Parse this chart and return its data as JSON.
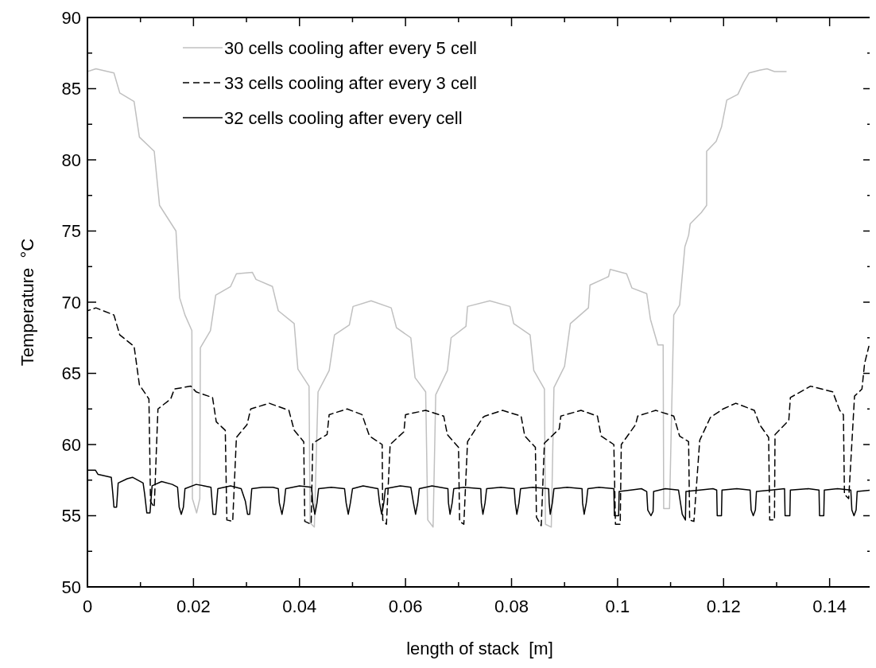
{
  "chart_data": {
    "type": "line",
    "xlabel": "length of stack  [m]",
    "ylabel": "Temperature  °C",
    "xlim": [
      0,
      0.148
    ],
    "ylim": [
      50,
      90
    ],
    "xticks": [
      0,
      {
        "value": 0.01,
        "label": null
      },
      0.02,
      {
        "value": 0.03,
        "label": null
      },
      0.04,
      {
        "value": 0.05,
        "label": null
      },
      0.06,
      {
        "value": 0.07,
        "label": null
      },
      0.08,
      {
        "value": 0.09,
        "label": null
      },
      0.1,
      {
        "value": 0.11,
        "label": null
      },
      0.12,
      {
        "value": 0.13,
        "label": null
      },
      0.14
    ],
    "yticks": [
      50,
      {
        "value": 52.5,
        "label": null
      },
      55,
      {
        "value": 57.5,
        "label": null
      },
      60,
      {
        "value": 62.5,
        "label": null
      },
      65,
      {
        "value": 67.5,
        "label": null
      },
      70,
      {
        "value": 72.5,
        "label": null
      },
      75,
      {
        "value": 77.5,
        "label": null
      },
      80,
      {
        "value": 82.5,
        "label": null
      },
      85,
      {
        "value": 87.5,
        "label": null
      },
      90
    ],
    "grid": false,
    "legend": "top left",
    "marker": "none",
    "series": [
      {
        "name": "30 cells cooling after every 5 cell",
        "color": "#c0c0c0",
        "line_style": "solid",
        "x": [
          0,
          0.0016,
          0.005,
          0.0061,
          0.0088,
          0.0098,
          0.0126,
          0.0136,
          0.0167,
          0.0174,
          0.0184,
          0.0197,
          0.0198,
          0.0206,
          0.0212,
          0.0213,
          0.0232,
          0.0242,
          0.027,
          0.0281,
          0.0311,
          0.0318,
          0.0349,
          0.036,
          0.039,
          0.0397,
          0.0418,
          0.042,
          0.0428,
          0.0435,
          0.0456,
          0.0466,
          0.0494,
          0.0501,
          0.0535,
          0.0573,
          0.0583,
          0.061,
          0.0618,
          0.0638,
          0.0642,
          0.0652,
          0.0657,
          0.0679,
          0.0686,
          0.0714,
          0.0717,
          0.0759,
          0.0797,
          0.0804,
          0.0835,
          0.0842,
          0.0862,
          0.0864,
          0.0875,
          0.088,
          0.09,
          0.0911,
          0.0945,
          0.0948,
          0.0983,
          0.0986,
          0.1017,
          0.1027,
          0.1055,
          0.1062,
          0.1076,
          0.1086,
          0.1087,
          0.1098,
          0.1106,
          0.1117,
          0.1127,
          0.1134,
          0.1137,
          0.1158,
          0.1168,
          0.1168,
          0.1186,
          0.1196,
          0.1206,
          0.1227,
          0.1237,
          0.1248,
          0.1268,
          0.1282,
          0.1296,
          0.1318
        ],
        "values": [
          86.2,
          86.4,
          86.1,
          84.7,
          84.1,
          81.6,
          80.6,
          76.8,
          75.0,
          70.3,
          69.1,
          68.0,
          56.2,
          55.2,
          56.2,
          66.8,
          68.0,
          70.5,
          71.1,
          72.0,
          72.1,
          71.6,
          71.1,
          69.4,
          68.5,
          65.3,
          64.1,
          54.5,
          54.2,
          63.7,
          65.2,
          67.7,
          68.4,
          69.7,
          70.1,
          69.6,
          68.2,
          67.5,
          64.7,
          63.7,
          54.7,
          54.2,
          63.5,
          65.2,
          67.5,
          68.3,
          69.7,
          70.1,
          69.7,
          68.5,
          67.7,
          65.2,
          63.9,
          54.4,
          54.2,
          64.0,
          65.5,
          68.5,
          69.6,
          71.2,
          71.8,
          72.3,
          72.0,
          71.0,
          70.6,
          68.8,
          67.0,
          67.0,
          55.5,
          55.5,
          69.1,
          69.8,
          73.9,
          74.7,
          75.5,
          76.3,
          76.8,
          80.6,
          81.3,
          82.3,
          84.2,
          84.6,
          85.4,
          86.1,
          86.3,
          86.4,
          86.2,
          86.2
        ]
      },
      {
        "name": "33 cells cooling after every 3 cell",
        "color": "#000000",
        "line_style": "dashed",
        "x": [
          0,
          0.0016,
          0.005,
          0.0061,
          0.0088,
          0.0098,
          0.0116,
          0.0119,
          0.0126,
          0.0133,
          0.0157,
          0.0164,
          0.0195,
          0.0205,
          0.0236,
          0.0243,
          0.026,
          0.0263,
          0.0274,
          0.0281,
          0.0301,
          0.0308,
          0.0343,
          0.038,
          0.039,
          0.0408,
          0.041,
          0.0422,
          0.0425,
          0.0452,
          0.0456,
          0.049,
          0.0518,
          0.0532,
          0.0556,
          0.0557,
          0.0564,
          0.0571,
          0.0597,
          0.06,
          0.0638,
          0.0672,
          0.0679,
          0.07,
          0.0702,
          0.071,
          0.0717,
          0.0746,
          0.075,
          0.0783,
          0.0818,
          0.0825,
          0.0845,
          0.0847,
          0.0856,
          0.0862,
          0.089,
          0.0893,
          0.0931,
          0.0962,
          0.0969,
          0.0993,
          0.0996,
          0.1005,
          0.1007,
          0.1034,
          0.1038,
          0.1072,
          0.1106,
          0.1117,
          0.1134,
          0.1136,
          0.1144,
          0.1155,
          0.1175,
          0.1199,
          0.1223,
          0.1258,
          0.1268,
          0.1285,
          0.1287,
          0.1296,
          0.1297,
          0.1323,
          0.1326,
          0.1364,
          0.1406,
          0.1419,
          0.1426,
          0.1428,
          0.1436,
          0.1447,
          0.1461,
          0.1466,
          0.1474
        ],
        "values": [
          69.4,
          69.6,
          69.1,
          67.7,
          66.9,
          64.2,
          63.2,
          56.0,
          55.6,
          62.5,
          63.2,
          63.9,
          64.1,
          63.7,
          63.3,
          61.6,
          61.0,
          54.7,
          54.6,
          60.5,
          61.4,
          62.5,
          62.9,
          62.4,
          61.0,
          60.2,
          54.6,
          54.4,
          60.1,
          60.7,
          62.1,
          62.5,
          62.1,
          60.6,
          60.0,
          54.7,
          54.4,
          60.0,
          60.9,
          62.1,
          62.4,
          62.0,
          60.7,
          59.8,
          54.6,
          54.4,
          60.2,
          61.9,
          62.0,
          62.4,
          62.0,
          60.6,
          59.8,
          54.9,
          54.3,
          60.1,
          61.1,
          62.0,
          62.4,
          62.0,
          60.6,
          60.0,
          54.4,
          54.4,
          60.0,
          61.4,
          62.0,
          62.4,
          62.0,
          60.6,
          60.2,
          54.7,
          54.6,
          60.3,
          61.9,
          62.5,
          62.9,
          62.4,
          61.4,
          60.5,
          54.7,
          54.7,
          60.7,
          61.7,
          63.3,
          64.1,
          63.7,
          62.4,
          62.1,
          56.5,
          56.2,
          63.4,
          63.9,
          65.7,
          66.9
        ]
      },
      {
        "name": "32 cells cooling after every cell",
        "color": "#000000",
        "line_style": "solid",
        "x": [
          0,
          0.0015,
          0.002,
          0.0045,
          0.0048,
          0.005,
          0.0055,
          0.0058,
          0.0075,
          0.0085,
          0.0105,
          0.0108,
          0.0112,
          0.0118,
          0.0122,
          0.014,
          0.016,
          0.017,
          0.0173,
          0.0177,
          0.0181,
          0.0184,
          0.0205,
          0.022,
          0.0233,
          0.0237,
          0.0242,
          0.0246,
          0.027,
          0.029,
          0.0298,
          0.0302,
          0.0306,
          0.031,
          0.033,
          0.035,
          0.036,
          0.0362,
          0.0367,
          0.0371,
          0.0374,
          0.04,
          0.0423,
          0.0425,
          0.0429,
          0.0433,
          0.0436,
          0.046,
          0.0485,
          0.0488,
          0.0492,
          0.0496,
          0.05,
          0.052,
          0.0548,
          0.0551,
          0.0555,
          0.0559,
          0.0562,
          0.059,
          0.061,
          0.0615,
          0.0619,
          0.0623,
          0.0626,
          0.065,
          0.068,
          0.0681,
          0.0684,
          0.0688,
          0.0691,
          0.071,
          0.0742,
          0.0743,
          0.0746,
          0.075,
          0.0753,
          0.078,
          0.0805,
          0.0807,
          0.081,
          0.0814,
          0.0817,
          0.084,
          0.087,
          0.0871,
          0.0873,
          0.0877,
          0.088,
          0.0905,
          0.0933,
          0.0934,
          0.0937,
          0.0941,
          0.0944,
          0.0965,
          0.0993,
          0.0994,
          0.1002,
          0.1003,
          0.1025,
          0.1045,
          0.1055,
          0.1057,
          0.1063,
          0.1067,
          0.1068,
          0.109,
          0.1115,
          0.1122,
          0.1128,
          0.1129,
          0.1155,
          0.118,
          0.1187,
          0.1188,
          0.1196,
          0.1197,
          0.1225,
          0.125,
          0.1252,
          0.1256,
          0.126,
          0.1262,
          0.129,
          0.1315,
          0.1316,
          0.1325,
          0.1326,
          0.136,
          0.138,
          0.1381,
          0.1389,
          0.139,
          0.1415,
          0.144,
          0.1442,
          0.1446,
          0.145,
          0.1452,
          0.1478
        ],
        "values": [
          58.2,
          58.2,
          57.9,
          57.7,
          56.5,
          55.6,
          55.6,
          57.3,
          57.6,
          57.7,
          57.3,
          56.5,
          55.2,
          55.2,
          57.1,
          57.4,
          57.2,
          57.0,
          55.6,
          55.1,
          55.6,
          56.9,
          57.2,
          57.1,
          57.0,
          55.1,
          55.1,
          56.9,
          57.1,
          56.9,
          56.0,
          55.1,
          55.1,
          56.9,
          57.0,
          57.0,
          56.9,
          55.9,
          55.1,
          55.9,
          56.9,
          57.1,
          57.0,
          55.9,
          55.1,
          55.9,
          56.9,
          57.0,
          56.9,
          55.9,
          55.1,
          55.9,
          56.9,
          57.1,
          56.9,
          55.9,
          55.1,
          55.9,
          56.9,
          57.1,
          57.0,
          55.9,
          55.1,
          55.9,
          56.9,
          57.1,
          56.9,
          55.9,
          55.1,
          55.9,
          56.9,
          57.0,
          56.9,
          55.9,
          55.1,
          55.9,
          56.9,
          57.0,
          56.9,
          55.9,
          55.1,
          55.9,
          56.9,
          57.0,
          56.9,
          55.9,
          55.1,
          55.9,
          56.9,
          57.0,
          56.9,
          55.9,
          55.1,
          55.9,
          56.9,
          57.0,
          56.9,
          55.0,
          55.0,
          56.7,
          56.8,
          56.9,
          56.7,
          55.4,
          55.0,
          55.3,
          56.7,
          56.9,
          56.8,
          55.1,
          54.7,
          56.7,
          56.8,
          56.9,
          56.8,
          55.0,
          55.0,
          56.8,
          56.9,
          56.8,
          55.4,
          55.0,
          55.4,
          56.7,
          56.8,
          56.9,
          55.0,
          55.0,
          56.8,
          56.9,
          56.8,
          55.0,
          55.0,
          56.8,
          56.9,
          56.8,
          55.4,
          55.0,
          55.4,
          56.7,
          56.8
        ]
      }
    ]
  }
}
